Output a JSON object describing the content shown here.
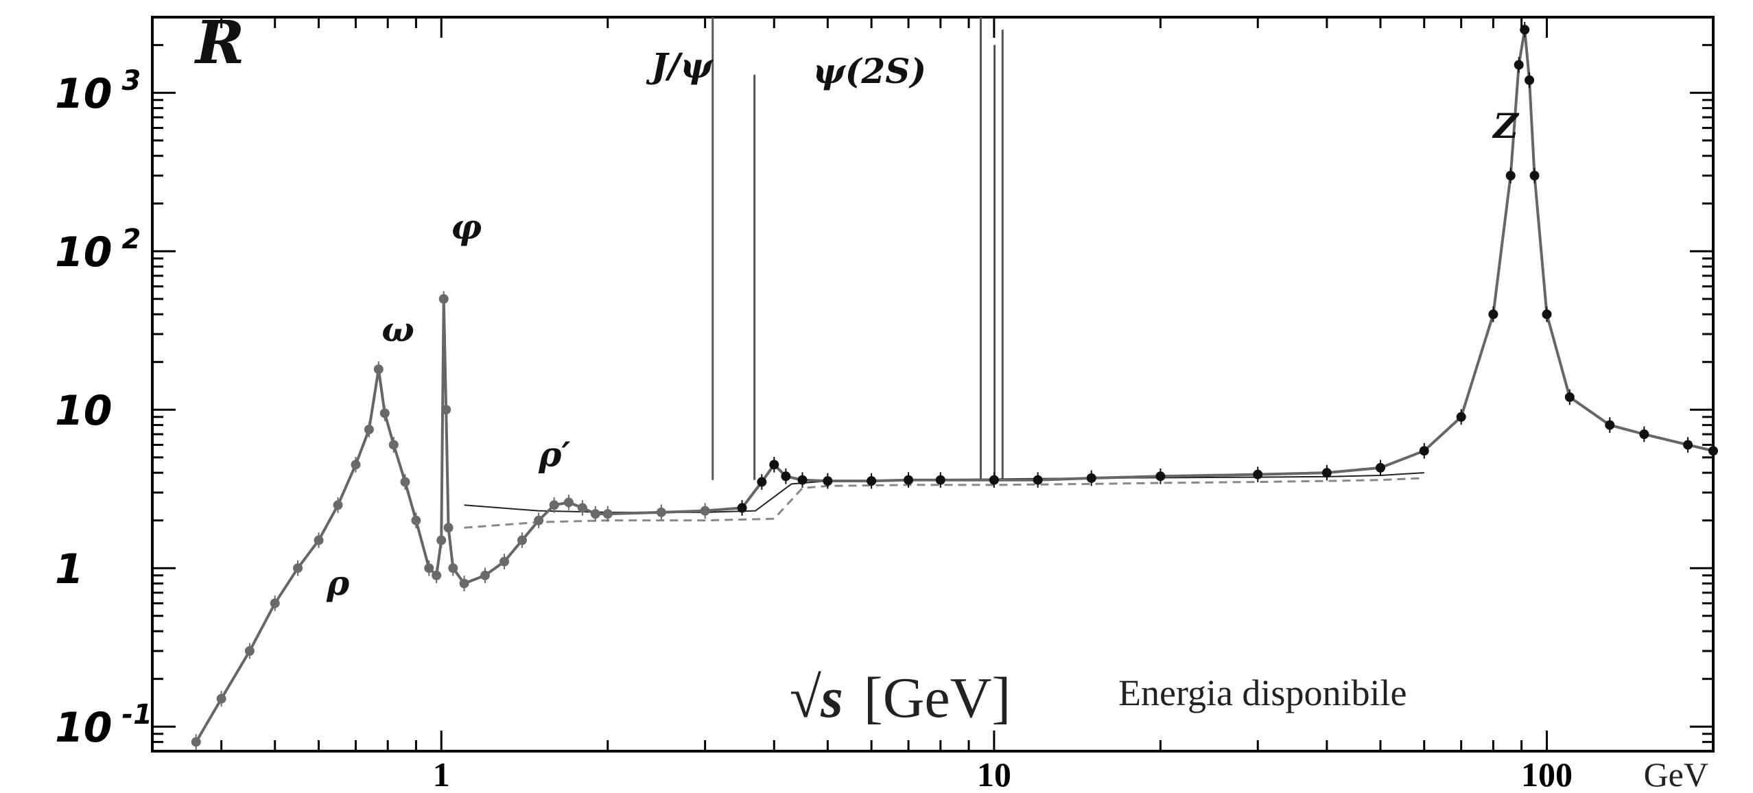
{
  "chart_data": {
    "type": "line",
    "title": "",
    "ylabel": "R",
    "xlabel": "√s [GeV]",
    "xlabel_math": "√s",
    "xlabel_unit": "[GeV]",
    "x_caption": "Energia disponibile",
    "x_unit_right": "GeV",
    "xscale": "log",
    "yscale": "log",
    "xlim": [
      0.3,
      200
    ],
    "ylim": [
      0.07,
      3000
    ],
    "grid": false,
    "y_ticks": [
      {
        "value": 0.1,
        "base": "10",
        "exp": "-1"
      },
      {
        "value": 1,
        "base": "1",
        "exp": ""
      },
      {
        "value": 10,
        "base": "10",
        "exp": ""
      },
      {
        "value": 100,
        "base": "10",
        "exp": "2"
      },
      {
        "value": 1000,
        "base": "10",
        "exp": "3"
      }
    ],
    "x_ticks": [
      {
        "value": 1,
        "label": "1"
      },
      {
        "value": 10,
        "label": "10"
      },
      {
        "value": 100,
        "label": "100"
      }
    ],
    "annotations": [
      {
        "text": "ρ",
        "x": 0.62,
        "y": 0.68
      },
      {
        "text": "ω",
        "x": 0.78,
        "y": 27
      },
      {
        "text": "φ",
        "x": 1.04,
        "y": 120
      },
      {
        "text": "ρ′",
        "x": 1.5,
        "y": 4.4
      },
      {
        "text": "J/ψ",
        "x": 2.4,
        "y": 1250
      },
      {
        "text": "ψ(2S)",
        "x": 4.7,
        "y": 1150
      },
      {
        "text": "Z",
        "x": 80,
        "y": 520
      }
    ],
    "narrow_resonances": [
      {
        "x": 3.097,
        "y_top": 3000
      },
      {
        "x": 3.686,
        "y_top": 1300
      },
      {
        "x": 9.46,
        "y_top": 3000
      },
      {
        "x": 10.02,
        "y_top": 2000
      },
      {
        "x": 10.36,
        "y_top": 2500
      }
    ],
    "series": [
      {
        "x": [
          0.36,
          0.4,
          0.45,
          0.5,
          0.55,
          0.6,
          0.65,
          0.7,
          0.74,
          0.77,
          0.79,
          0.82,
          0.86,
          0.9,
          0.95,
          0.98,
          1.0,
          1.01,
          1.02,
          1.03,
          1.05,
          1.1,
          1.2,
          1.3,
          1.4,
          1.5,
          1.6,
          1.7,
          1.8,
          1.9,
          2.0,
          2.5,
          3.0,
          3.5,
          3.8,
          4.0,
          4.2,
          4.5,
          5.0,
          6.0,
          7.0,
          8.0,
          10.0,
          12.0,
          15.0,
          20.0,
          30.0,
          40.0,
          50.0,
          60.0,
          70.0,
          80.0,
          86.0,
          89.0,
          91.2,
          93.0,
          95.0,
          100.0,
          110.0,
          130.0,
          150.0,
          180.0,
          200.0
        ],
        "values": [
          0.08,
          0.15,
          0.3,
          0.6,
          1.0,
          1.5,
          2.5,
          4.5,
          7.5,
          18.0,
          9.5,
          6.0,
          3.5,
          2.0,
          1.0,
          0.9,
          1.5,
          50.0,
          10.0,
          1.8,
          1.0,
          0.8,
          0.9,
          1.1,
          1.5,
          2.0,
          2.5,
          2.6,
          2.4,
          2.2,
          2.2,
          2.25,
          2.3,
          2.4,
          3.5,
          4.5,
          3.8,
          3.6,
          3.55,
          3.55,
          3.6,
          3.6,
          3.6,
          3.6,
          3.7,
          3.8,
          3.9,
          4.0,
          4.3,
          5.5,
          9.0,
          40.0,
          300.0,
          1500.0,
          2500.0,
          1200.0,
          300.0,
          40.0,
          12.0,
          8.0,
          7.0,
          6.0,
          5.5
        ]
      }
    ]
  }
}
